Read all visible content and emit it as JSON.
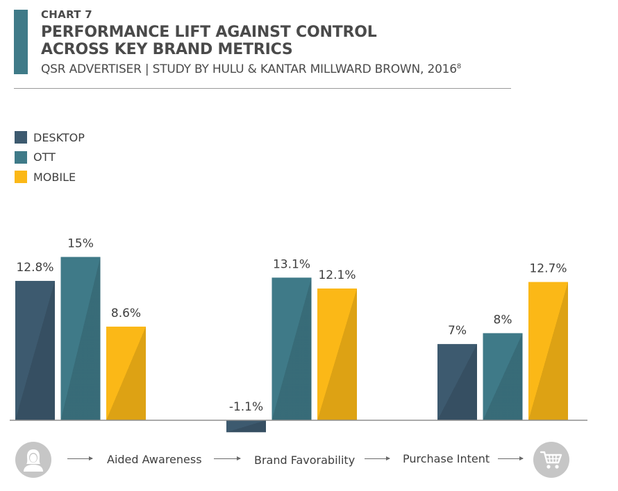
{
  "header": {
    "chart_number": "CHART 7",
    "title_line1": "PERFORMANCE LIFT AGAINST CONTROL",
    "title_line2": "ACROSS KEY BRAND METRICS",
    "subtitle": "QSR ADVERTISER | STUDY BY HULU & KANTAR MILLWARD BROWN, 2016",
    "subtitle_sup": "8"
  },
  "colors": {
    "accent": "#3f7a88",
    "desktop": "#3d5a6f",
    "ott": "#3f7a88",
    "mobile": "#fbb817",
    "icon_circle": "#c6c6c6"
  },
  "chart_data": {
    "type": "bar",
    "title": "PERFORMANCE LIFT AGAINST CONTROL ACROSS KEY BRAND METRICS",
    "categories": [
      "Aided Awareness",
      "Brand Favorability",
      "Purchase Intent"
    ],
    "series": [
      {
        "name": "DESKTOP",
        "values": [
          12.8,
          -1.1,
          7
        ],
        "labels": [
          "12.8%",
          "-1.1%",
          "7%"
        ]
      },
      {
        "name": "OTT",
        "values": [
          15,
          13.1,
          8
        ],
        "labels": [
          "15%",
          "13.1%",
          "8%"
        ]
      },
      {
        "name": "MOBILE",
        "values": [
          8.6,
          12.1,
          12.7
        ],
        "labels": [
          "8.6%",
          "12.1%",
          "12.7%"
        ]
      }
    ],
    "legend_position": "top-left",
    "grid": false,
    "ylim": [
      -1.1,
      15
    ]
  },
  "flow": {
    "start_icon": "person-icon",
    "end_icon": "shopping-cart-icon",
    "steps": [
      "Aided Awareness",
      "Brand Favorability",
      "Purchase Intent"
    ]
  }
}
